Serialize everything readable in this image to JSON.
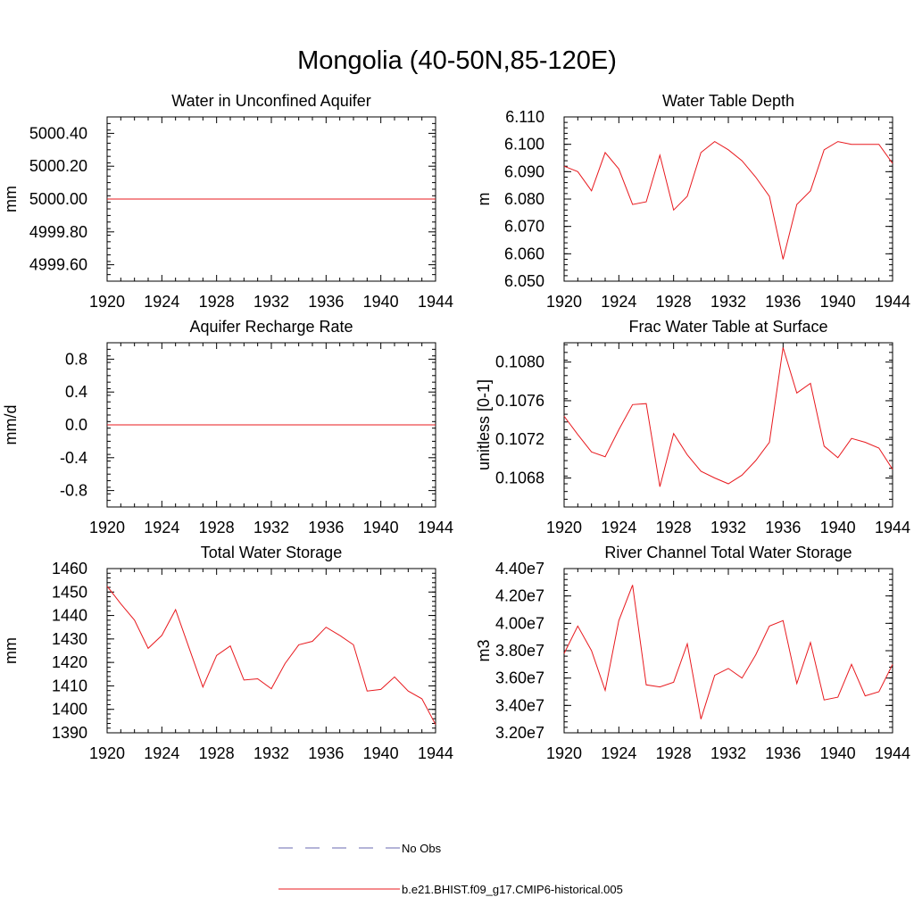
{
  "page": {
    "title": "Mongolia (40-50N,85-120E)"
  },
  "legend": {
    "items": [
      {
        "label": "No Obs",
        "color": "#6a6ab0",
        "dash": true
      },
      {
        "label": "b.e21.BHIST.f09_g17.CMIP6-historical.005",
        "color": "#e8191e",
        "dash": false
      }
    ]
  },
  "chart_data": [
    {
      "type": "line",
      "title": "Water in Unconfined Aquifer",
      "ylabel": "mm",
      "xlim": [
        1920,
        1944
      ],
      "ylim": [
        4999.5,
        5000.5
      ],
      "xticks": [
        1920,
        1924,
        1928,
        1932,
        1936,
        1940,
        1944
      ],
      "yticks": [
        4999.6,
        4999.8,
        5000.0,
        5000.2,
        5000.4
      ],
      "ytick_labels": [
        "4999.60",
        "4999.80",
        "5000.00",
        "5000.20",
        "5000.40"
      ],
      "yminor_step": 0.04,
      "series": [
        {
          "color": "#e8191e",
          "x": [
            1920,
            1944
          ],
          "y": [
            5000.0,
            5000.0
          ]
        }
      ]
    },
    {
      "type": "line",
      "title": "Water Table Depth",
      "ylabel": "m",
      "xlim": [
        1920,
        1944
      ],
      "ylim": [
        6.05,
        6.11
      ],
      "xticks": [
        1920,
        1924,
        1928,
        1932,
        1936,
        1940,
        1944
      ],
      "yticks": [
        6.05,
        6.06,
        6.07,
        6.08,
        6.09,
        6.1,
        6.11
      ],
      "ytick_labels": [
        "6.050",
        "6.060",
        "6.070",
        "6.080",
        "6.090",
        "6.100",
        "6.110"
      ],
      "yminor_step": 0.002,
      "series": [
        {
          "color": "#e8191e",
          "x": [
            1920,
            1921,
            1922,
            1923,
            1924,
            1925,
            1926,
            1927,
            1928,
            1929,
            1930,
            1931,
            1932,
            1933,
            1934,
            1935,
            1936,
            1937,
            1938,
            1939,
            1940,
            1941,
            1942,
            1943,
            1944
          ],
          "y": [
            6.092,
            6.09,
            6.083,
            6.097,
            6.091,
            6.078,
            6.079,
            6.096,
            6.076,
            6.081,
            6.097,
            6.101,
            6.098,
            6.094,
            6.088,
            6.081,
            6.058,
            6.078,
            6.083,
            6.098,
            6.101,
            6.1,
            6.1,
            6.1,
            6.093
          ]
        }
      ]
    },
    {
      "type": "line",
      "title": "Aquifer Recharge Rate",
      "ylabel": "mm/d",
      "xlim": [
        1920,
        1944
      ],
      "ylim": [
        -1.0,
        1.0
      ],
      "xticks": [
        1920,
        1924,
        1928,
        1932,
        1936,
        1940,
        1944
      ],
      "yticks": [
        -0.8,
        -0.4,
        0.0,
        0.4,
        0.8
      ],
      "ytick_labels": [
        "-0.8",
        "-0.4",
        "0.0",
        "0.4",
        "0.8"
      ],
      "yminor_step": 0.08,
      "series": [
        {
          "color": "#e8191e",
          "x": [
            1920,
            1944
          ],
          "y": [
            0.0,
            0.0
          ]
        }
      ]
    },
    {
      "type": "line",
      "title": "Frac Water Table at Surface",
      "ylabel": "unitless [0-1]",
      "xlim": [
        1920,
        1944
      ],
      "ylim": [
        0.1065,
        0.1082
      ],
      "xticks": [
        1920,
        1924,
        1928,
        1932,
        1936,
        1940,
        1944
      ],
      "yticks": [
        0.1068,
        0.1072,
        0.1076,
        0.108
      ],
      "ytick_labels": [
        "0.1068",
        "0.1072",
        "0.1076",
        "0.1080"
      ],
      "yminor_step": 8e-05,
      "series": [
        {
          "color": "#e8191e",
          "x": [
            1920,
            1921,
            1922,
            1923,
            1924,
            1925,
            1926,
            1927,
            1928,
            1929,
            1930,
            1931,
            1932,
            1933,
            1934,
            1935,
            1936,
            1937,
            1938,
            1939,
            1940,
            1941,
            1942,
            1943,
            1944
          ],
          "y": [
            0.10744,
            0.10725,
            0.10707,
            0.10702,
            0.1073,
            0.10756,
            0.10757,
            0.10671,
            0.10726,
            0.10704,
            0.10687,
            0.1068,
            0.10674,
            0.10683,
            0.10698,
            0.10717,
            0.10815,
            0.10768,
            0.10778,
            0.10713,
            0.10701,
            0.10721,
            0.10717,
            0.10711,
            0.10689
          ]
        }
      ]
    },
    {
      "type": "line",
      "title": "Total Water Storage",
      "ylabel": "mm",
      "xlim": [
        1920,
        1944
      ],
      "ylim": [
        1390,
        1460
      ],
      "xticks": [
        1920,
        1924,
        1928,
        1932,
        1936,
        1940,
        1944
      ],
      "yticks": [
        1390,
        1400,
        1410,
        1420,
        1430,
        1440,
        1450,
        1460
      ],
      "ytick_labels": [
        "1390",
        "1400",
        "1410",
        "1420",
        "1430",
        "1440",
        "1450",
        "1460"
      ],
      "yminor_step": 2,
      "series": [
        {
          "color": "#e8191e",
          "x": [
            1920,
            1921,
            1922,
            1923,
            1924,
            1925,
            1926,
            1927,
            1928,
            1929,
            1930,
            1931,
            1932,
            1933,
            1934,
            1935,
            1936,
            1937,
            1938,
            1939,
            1940,
            1941,
            1942,
            1943,
            1944
          ],
          "y": [
            1452.5,
            1445,
            1438,
            1426,
            1431.5,
            1442.5,
            1426,
            1409.5,
            1423,
            1427,
            1412.5,
            1413,
            1408.8,
            1419.5,
            1427.5,
            1429,
            1435,
            1431.5,
            1427.5,
            1407.8,
            1408.5,
            1413.8,
            1407.8,
            1404.5,
            1393.5
          ]
        }
      ]
    },
    {
      "type": "line",
      "title": "River Channel Total Water Storage",
      "ylabel": "m3",
      "xlim": [
        1920,
        1944
      ],
      "ylim": [
        32000000,
        44000000
      ],
      "xticks": [
        1920,
        1924,
        1928,
        1932,
        1936,
        1940,
        1944
      ],
      "yticks": [
        32000000,
        34000000,
        36000000,
        38000000,
        40000000,
        42000000,
        44000000
      ],
      "ytick_labels": [
        "3.20e7",
        "3.40e7",
        "3.60e7",
        "3.80e7",
        "4.00e7",
        "4.20e7",
        "4.40e7"
      ],
      "yminor_step": 400000,
      "series": [
        {
          "color": "#e8191e",
          "x": [
            1920,
            1921,
            1922,
            1923,
            1924,
            1925,
            1926,
            1927,
            1928,
            1929,
            1930,
            1931,
            1932,
            1933,
            1934,
            1935,
            1936,
            1937,
            1938,
            1939,
            1940,
            1941,
            1942,
            1943,
            1944
          ],
          "y": [
            37800000,
            39800000,
            38000000,
            35100000,
            40200000,
            42800000,
            35500000,
            35350000,
            35700000,
            38500000,
            33000000,
            36200000,
            36700000,
            36000000,
            37700000,
            39800000,
            40200000,
            35600000,
            38600000,
            34400000,
            34600000,
            37000000,
            34700000,
            35000000,
            37000000
          ]
        }
      ]
    }
  ]
}
